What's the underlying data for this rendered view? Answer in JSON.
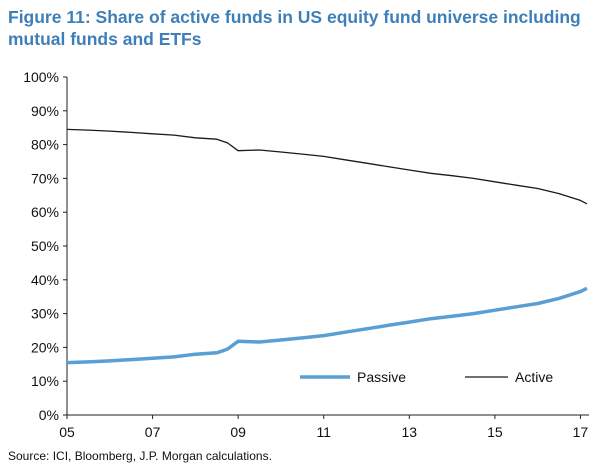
{
  "title_line1": "Figure 11: Share of active funds in US equity fund universe including",
  "title_line2": "mutual funds and ETFs",
  "source": "Source: ICI, Bloomberg, J.P. Morgan calculations.",
  "chart_data": {
    "type": "line",
    "title": "Figure 11: Share of active funds in US equity fund universe including mutual funds and ETFs",
    "xlabel": "",
    "ylabel": "",
    "xlim": [
      2005,
      2017.2
    ],
    "ylim": [
      0,
      100
    ],
    "x_ticks": [
      2005,
      2007,
      2009,
      2011,
      2013,
      2015,
      2017
    ],
    "x_tick_labels": [
      "05",
      "07",
      "09",
      "11",
      "13",
      "15",
      "17"
    ],
    "y_ticks": [
      0,
      10,
      20,
      30,
      40,
      50,
      60,
      70,
      80,
      90,
      100
    ],
    "y_tick_labels": [
      "0%",
      "10%",
      "20%",
      "30%",
      "40%",
      "50%",
      "60%",
      "70%",
      "80%",
      "90%",
      "100%"
    ],
    "legend_position": "bottom-right",
    "grid": false,
    "series": [
      {
        "name": "Passive",
        "color": "#5a9fd4",
        "x": [
          2005,
          2005.5,
          2006,
          2006.5,
          2007,
          2007.5,
          2008,
          2008.5,
          2008.75,
          2009,
          2009.5,
          2010,
          2010.5,
          2011,
          2011.5,
          2012,
          2012.5,
          2013,
          2013.5,
          2014,
          2014.5,
          2015,
          2015.5,
          2016,
          2016.5,
          2017,
          2017.15
        ],
        "y": [
          15.5,
          15.7,
          16.0,
          16.4,
          16.8,
          17.2,
          18.0,
          18.4,
          19.5,
          21.8,
          21.6,
          22.2,
          22.8,
          23.5,
          24.5,
          25.5,
          26.5,
          27.5,
          28.5,
          29.2,
          30.0,
          31.0,
          32.0,
          33.0,
          34.5,
          36.5,
          37.5
        ]
      },
      {
        "name": "Active",
        "color": "#1a1a1a",
        "x": [
          2005,
          2005.5,
          2006,
          2006.5,
          2007,
          2007.5,
          2008,
          2008.5,
          2008.75,
          2009,
          2009.5,
          2010,
          2010.5,
          2011,
          2011.5,
          2012,
          2012.5,
          2013,
          2013.5,
          2014,
          2014.5,
          2015,
          2015.5,
          2016,
          2016.5,
          2017,
          2017.15
        ],
        "y": [
          84.5,
          84.3,
          84.0,
          83.6,
          83.2,
          82.8,
          82.0,
          81.6,
          80.5,
          78.2,
          78.4,
          77.8,
          77.2,
          76.5,
          75.5,
          74.5,
          73.5,
          72.5,
          71.5,
          70.8,
          70.0,
          69.0,
          68.0,
          67.0,
          65.5,
          63.5,
          62.5
        ]
      }
    ]
  }
}
